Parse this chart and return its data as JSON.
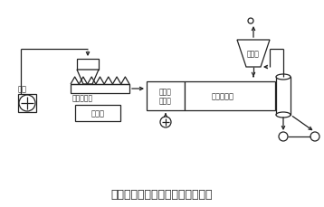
{
  "title": "高产节能新型烘干机系统工艺流程",
  "title_fontsize": 9,
  "bg_color": "#ffffff",
  "line_color": "#222222",
  "lw": 0.9,
  "labels": {
    "yuan_mei": "原煤",
    "tiao_su": "调速喂煤机",
    "kong_zhi": "控制室",
    "jie_mei": "节煤型\n沸腾炉",
    "gao_xiao": "高效烘干机",
    "shou_chen": "收尘器"
  },
  "layout": {
    "fig_w": 3.58,
    "fig_h": 2.3,
    "dpi": 100
  }
}
